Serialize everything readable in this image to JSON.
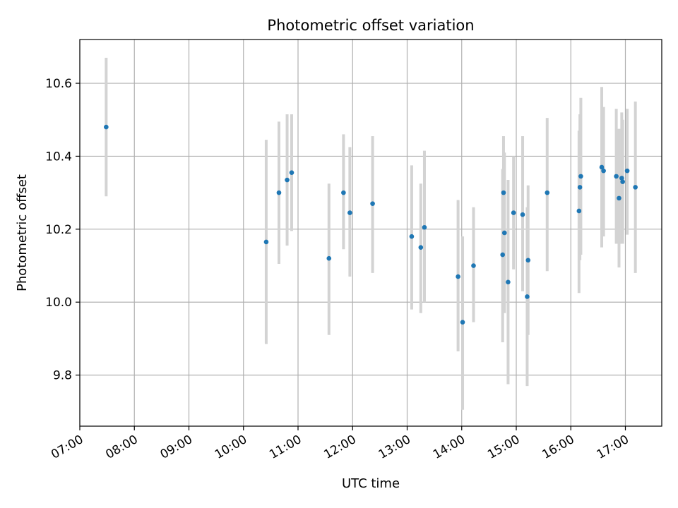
{
  "chart_data": {
    "type": "scatter",
    "title": "Photometric offset variation",
    "xlabel": "UTC time",
    "ylabel": "Photometric offset",
    "x_ticks": [
      "07:00",
      "08:00",
      "09:00",
      "10:00",
      "11:00",
      "12:00",
      "13:00",
      "14:00",
      "15:00",
      "16:00",
      "17:00"
    ],
    "y_ticks": [
      "9.8",
      "10.0",
      "10.2",
      "10.4",
      "10.6"
    ],
    "xlim": [
      "07:00",
      "17:40"
    ],
    "ylim": [
      9.66,
      10.72
    ],
    "grid": true,
    "colors": {
      "point": "#1f77b4",
      "errorbar": "#d3d3d3",
      "grid": "#b0b0b0"
    },
    "points": [
      {
        "t": "07:29",
        "y": 10.48,
        "lo": 10.29,
        "hi": 10.67
      },
      {
        "t": "10:25",
        "y": 10.165,
        "lo": 9.885,
        "hi": 10.445
      },
      {
        "t": "10:39",
        "y": 10.3,
        "lo": 10.105,
        "hi": 10.495
      },
      {
        "t": "10:48",
        "y": 10.335,
        "lo": 10.155,
        "hi": 10.515
      },
      {
        "t": "10:53",
        "y": 10.355,
        "lo": 10.195,
        "hi": 10.515
      },
      {
        "t": "11:34",
        "y": 10.12,
        "lo": 9.91,
        "hi": 10.325
      },
      {
        "t": "11:50",
        "y": 10.3,
        "lo": 10.145,
        "hi": 10.46
      },
      {
        "t": "11:57",
        "y": 10.245,
        "lo": 10.07,
        "hi": 10.425
      },
      {
        "t": "12:22",
        "y": 10.27,
        "lo": 10.08,
        "hi": 10.455
      },
      {
        "t": "13:05",
        "y": 10.18,
        "lo": 9.98,
        "hi": 10.375
      },
      {
        "t": "13:15",
        "y": 10.15,
        "lo": 9.97,
        "hi": 10.325
      },
      {
        "t": "13:19",
        "y": 10.205,
        "lo": 10.0,
        "hi": 10.415
      },
      {
        "t": "13:56",
        "y": 10.07,
        "lo": 9.865,
        "hi": 10.28
      },
      {
        "t": "14:01",
        "y": 9.945,
        "lo": 9.705,
        "hi": 10.18
      },
      {
        "t": "14:13",
        "y": 10.1,
        "lo": 9.945,
        "hi": 10.26
      },
      {
        "t": "14:45",
        "y": 10.13,
        "lo": 9.89,
        "hi": 10.365
      },
      {
        "t": "14:46",
        "y": 10.3,
        "lo": 10.145,
        "hi": 10.455
      },
      {
        "t": "14:47",
        "y": 10.19,
        "lo": 9.97,
        "hi": 10.41
      },
      {
        "t": "14:51",
        "y": 10.055,
        "lo": 9.775,
        "hi": 10.335
      },
      {
        "t": "14:57",
        "y": 10.245,
        "lo": 10.09,
        "hi": 10.4
      },
      {
        "t": "15:07",
        "y": 10.24,
        "lo": 10.03,
        "hi": 10.455
      },
      {
        "t": "15:12",
        "y": 10.015,
        "lo": 9.77,
        "hi": 10.26
      },
      {
        "t": "15:13",
        "y": 10.115,
        "lo": 9.91,
        "hi": 10.32
      },
      {
        "t": "15:34",
        "y": 10.3,
        "lo": 10.085,
        "hi": 10.505
      },
      {
        "t": "16:09",
        "y": 10.25,
        "lo": 10.025,
        "hi": 10.47
      },
      {
        "t": "16:10",
        "y": 10.315,
        "lo": 10.115,
        "hi": 10.515
      },
      {
        "t": "16:11",
        "y": 10.345,
        "lo": 10.13,
        "hi": 10.56
      },
      {
        "t": "16:34",
        "y": 10.37,
        "lo": 10.15,
        "hi": 10.59
      },
      {
        "t": "16:36",
        "y": 10.36,
        "lo": 10.18,
        "hi": 10.535
      },
      {
        "t": "16:50",
        "y": 10.345,
        "lo": 10.16,
        "hi": 10.53
      },
      {
        "t": "16:53",
        "y": 10.285,
        "lo": 10.095,
        "hi": 10.475
      },
      {
        "t": "16:56",
        "y": 10.34,
        "lo": 10.16,
        "hi": 10.52
      },
      {
        "t": "16:57",
        "y": 10.33,
        "lo": 10.16,
        "hi": 10.5
      },
      {
        "t": "17:02",
        "y": 10.36,
        "lo": 10.185,
        "hi": 10.53
      },
      {
        "t": "17:11",
        "y": 10.315,
        "lo": 10.08,
        "hi": 10.55
      }
    ]
  }
}
